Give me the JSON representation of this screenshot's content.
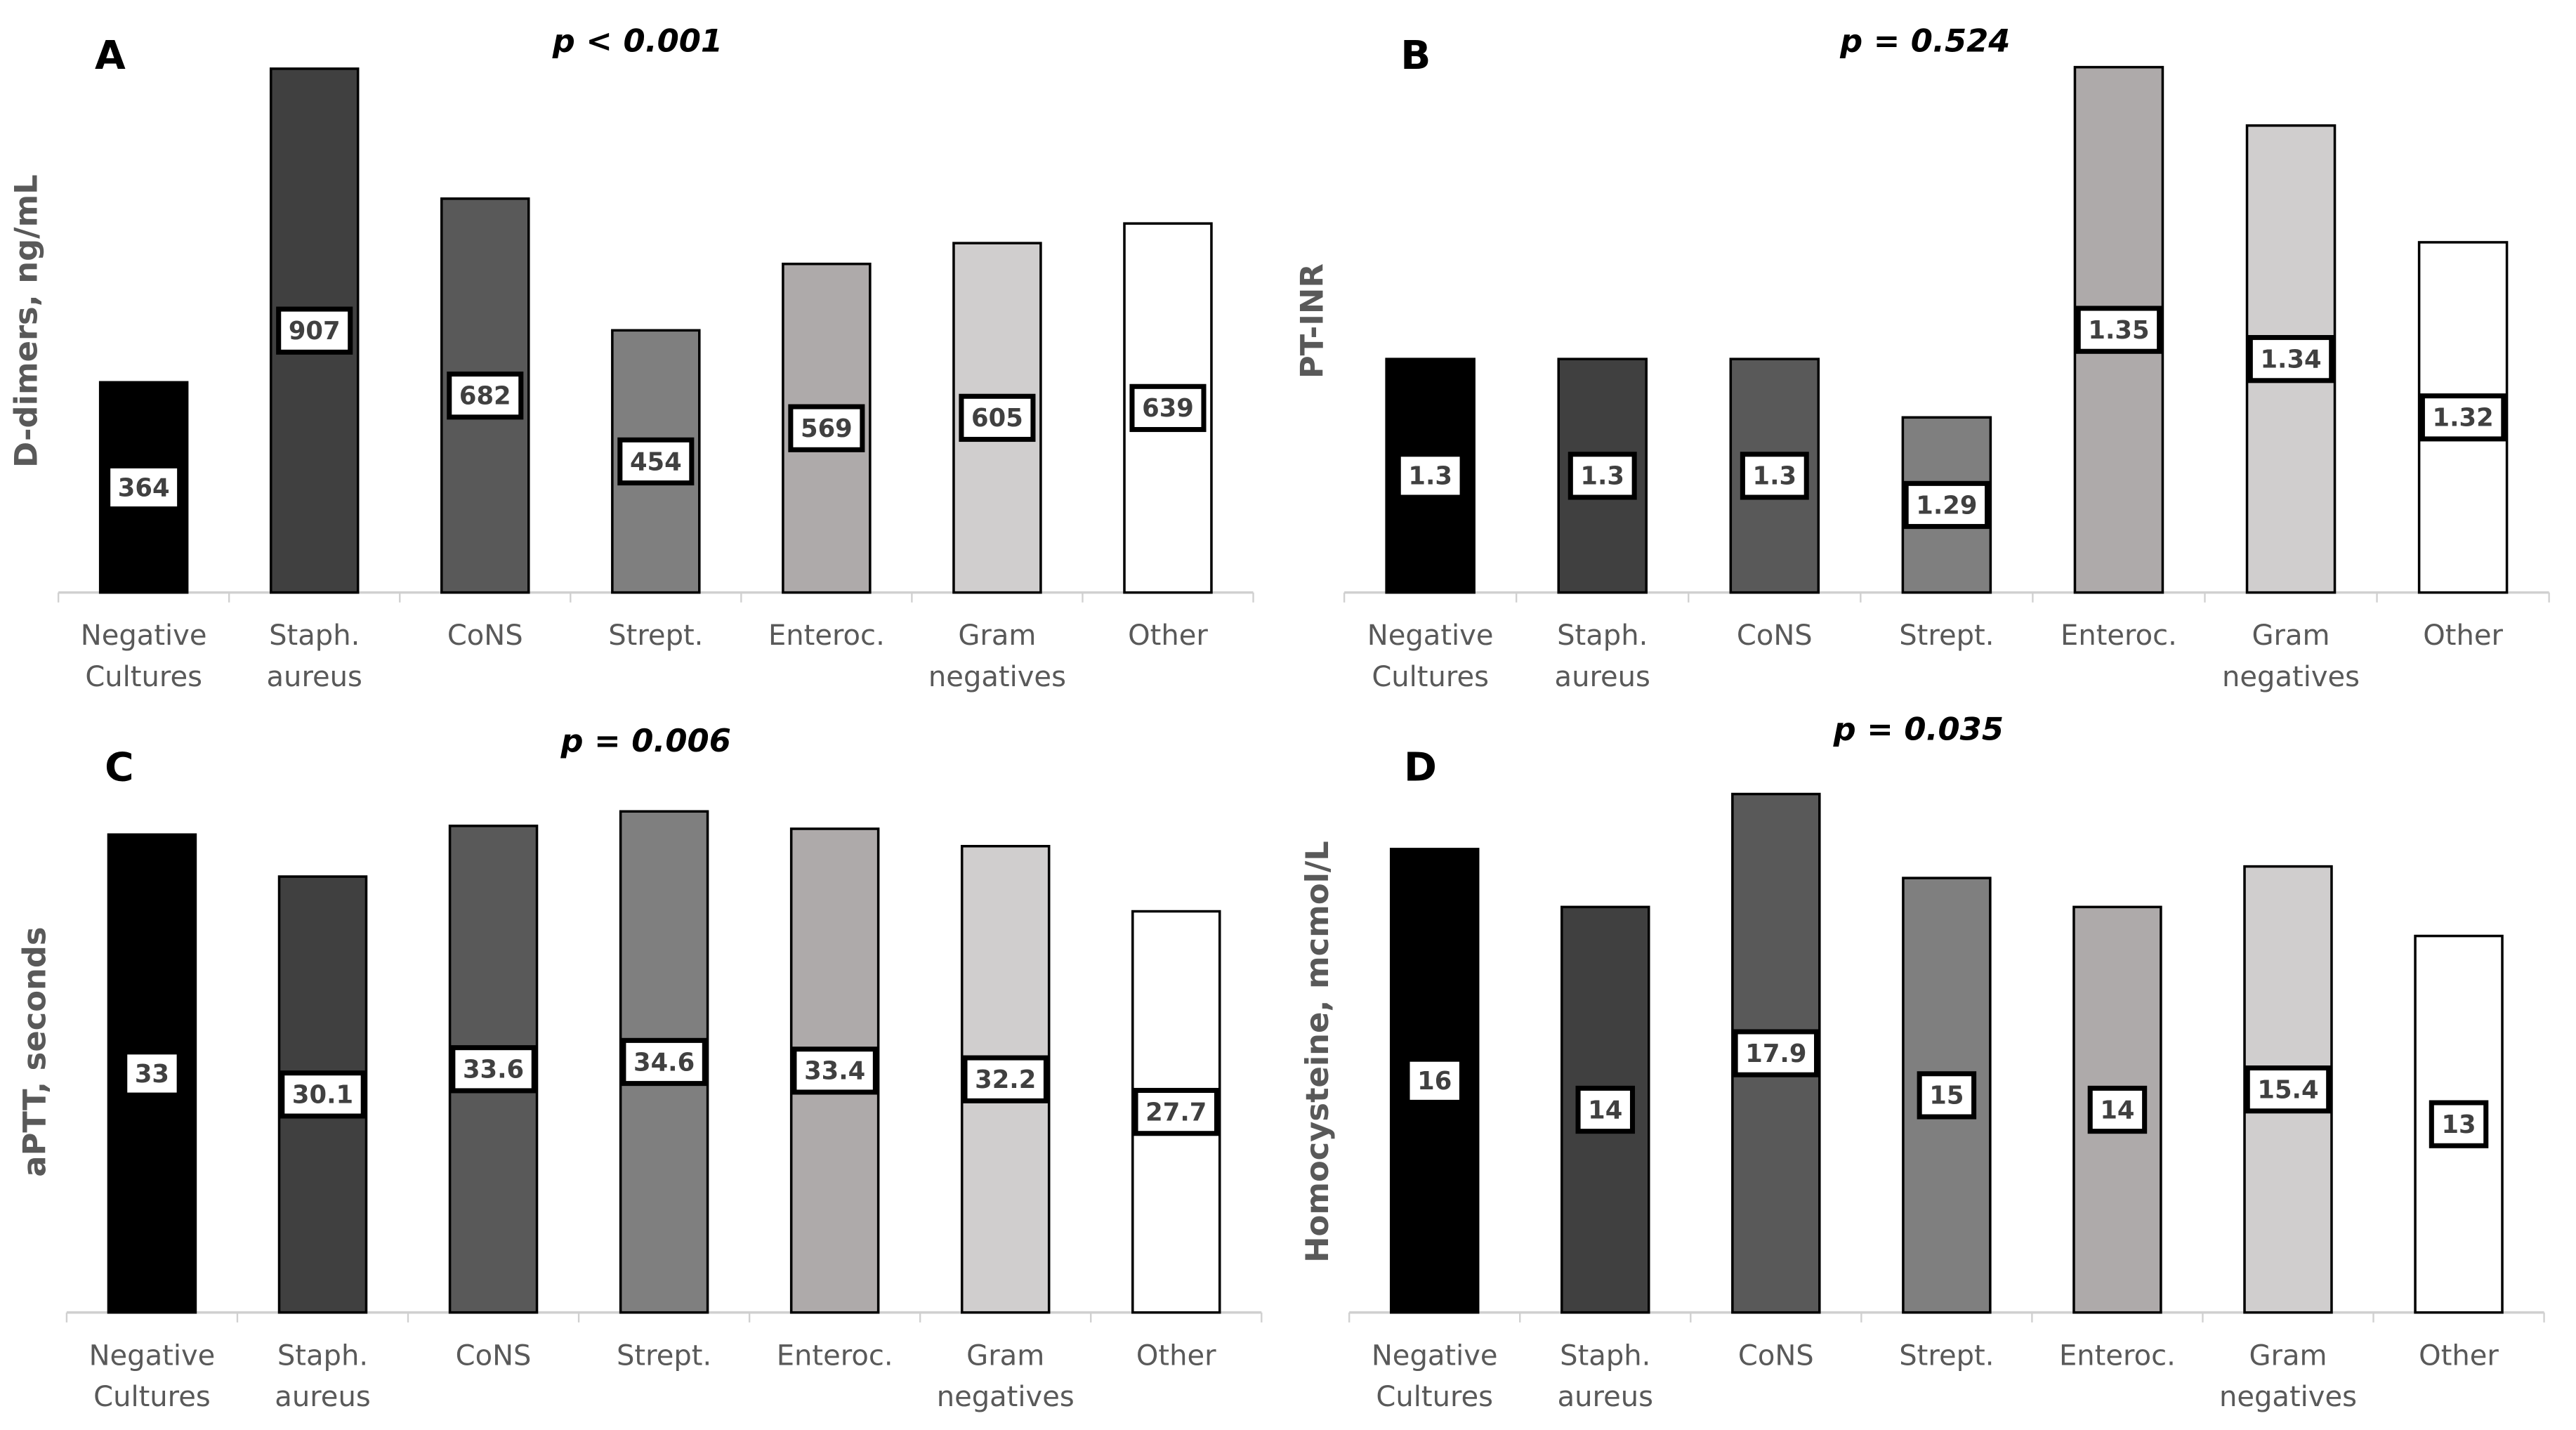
{
  "chart_data": [
    {
      "type": "bar",
      "panel_label": "A",
      "title": "p < 0.001",
      "y_label": "D-dimers, ng/mL",
      "categories": [
        "Negative Cultures",
        "Staph. aureus",
        "CoNS",
        "Strept.",
        "Enteroc.",
        "Gram negatives",
        "Other"
      ],
      "values": [
        364,
        907,
        682,
        454,
        569,
        605,
        639
      ],
      "colors": [
        "#000000",
        "#404040",
        "#595959",
        "#7f7f7f",
        "#aeaaaa",
        "#d0cece",
        "#ffffff"
      ],
      "ylim": [
        0,
        940
      ]
    },
    {
      "type": "bar",
      "panel_label": "B",
      "title": "p = 0.524",
      "y_label": "PT-INR",
      "categories": [
        "Negative Cultures",
        "Staph. aureus",
        "CoNS",
        "Strept.",
        "Enteroc.",
        "Gram negatives",
        "Other"
      ],
      "values": [
        1.3,
        1.3,
        1.3,
        1.29,
        1.35,
        1.34,
        1.32
      ],
      "colors": [
        "#000000",
        "#404040",
        "#595959",
        "#7f7f7f",
        "#aeaaaa",
        "#d0cece",
        "#ffffff"
      ],
      "ylim": [
        1.26,
        1.353
      ]
    },
    {
      "type": "bar",
      "panel_label": "C",
      "title": "p = 0.006",
      "y_label": "aPTT, seconds",
      "categories": [
        "Negative Cultures",
        "Staph. aureus",
        "CoNS",
        "Strept.",
        "Enteroc.",
        "Gram negatives",
        "Other"
      ],
      "values": [
        33,
        30.1,
        33.6,
        34.6,
        33.4,
        32.2,
        27.7
      ],
      "colors": [
        "#000000",
        "#404040",
        "#595959",
        "#7f7f7f",
        "#aeaaaa",
        "#d0cece",
        "#ffffff"
      ],
      "ylim": [
        0,
        36
      ]
    },
    {
      "type": "bar",
      "panel_label": "D",
      "title": "p = 0.035",
      "y_label": "Homocysteine, mcmol/L",
      "categories": [
        "Negative Cultures",
        "Staph. aureus",
        "CoNS",
        "Strept.",
        "Enteroc.",
        "Gram negatives",
        "Other"
      ],
      "values": [
        16,
        14,
        17.9,
        15,
        14,
        15.4,
        13
      ],
      "colors": [
        "#000000",
        "#404040",
        "#595959",
        "#7f7f7f",
        "#aeaaaa",
        "#d0cece",
        "#ffffff"
      ],
      "ylim": [
        0,
        18
      ]
    }
  ]
}
